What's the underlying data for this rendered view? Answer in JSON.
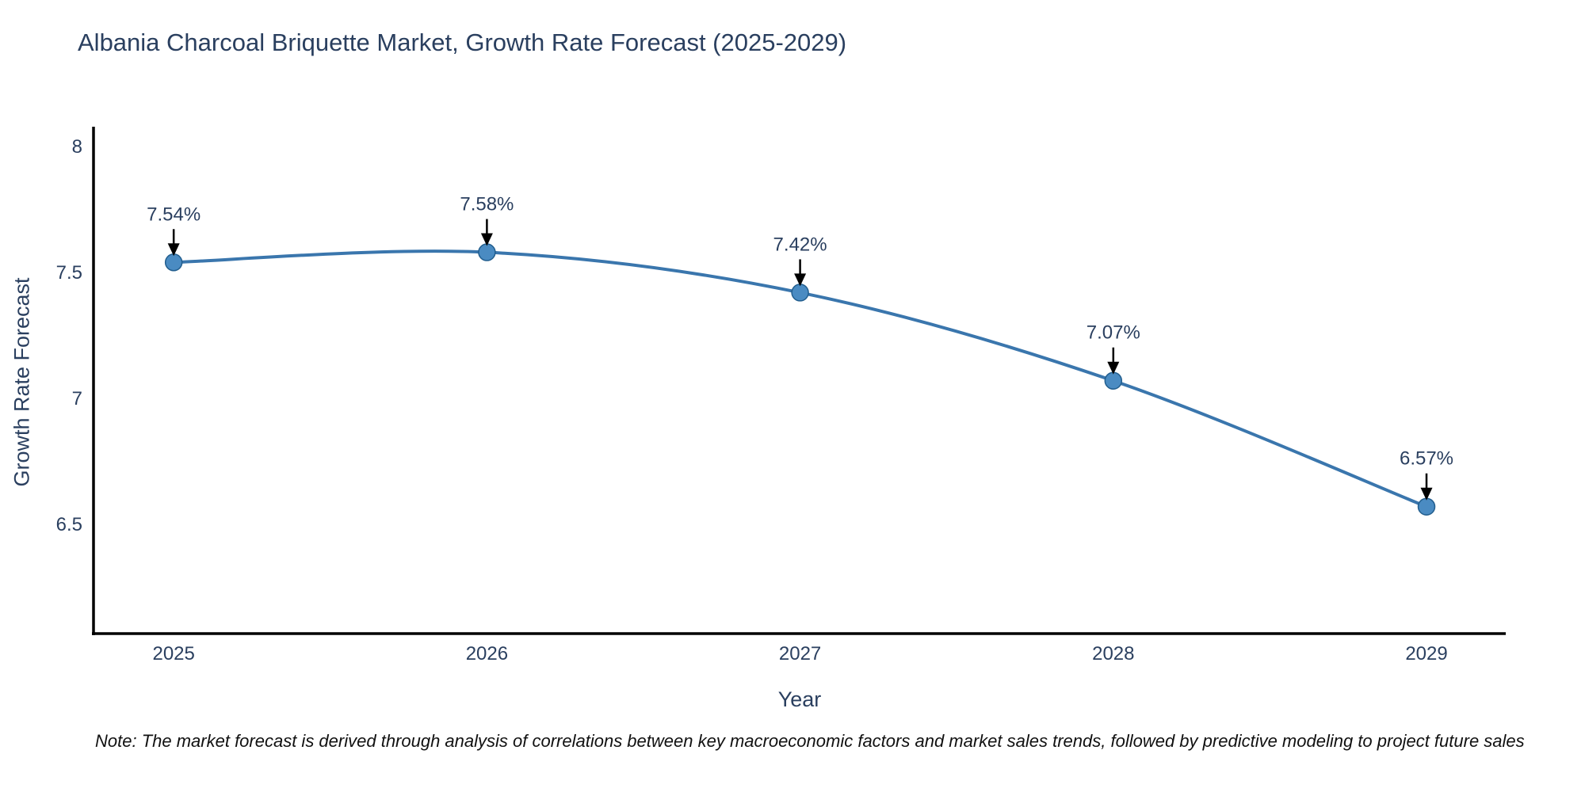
{
  "page": {
    "title": "Albania Charcoal Briquette Market, Growth Rate Forecast (2025-2029)",
    "note": "Note: The market forecast is derived through analysis of correlations between key macroeconomic factors and market sales trends, followed by predictive modeling to project future sales"
  },
  "chart_data": {
    "type": "line",
    "title": "Albania Charcoal Briquette Market, Growth Rate Forecast (2025-2029)",
    "xlabel": "Year",
    "ylabel": "Growth Rate Forecast",
    "x": [
      2025,
      2026,
      2027,
      2028,
      2029
    ],
    "values": [
      7.54,
      7.58,
      7.42,
      7.07,
      6.57
    ],
    "point_labels": [
      "7.54%",
      "7.58%",
      "7.42%",
      "7.07%",
      "6.57%"
    ],
    "yticks": [
      8,
      7.5,
      7,
      6.5
    ],
    "xticks": [
      2025,
      2026,
      2027,
      2028,
      2029
    ],
    "xlim": [
      2024.744,
      2029.253
    ],
    "ylim": [
      6.066,
      8.0786
    ],
    "grid": false,
    "legend": "none",
    "annotation_arrows": true,
    "colors": {
      "line": "#3a76ad",
      "marker_fill": "#4a8bc2",
      "marker_edge": "#225e8e",
      "axis_line": "#000000",
      "arrow": "#000000",
      "title_text": "#2a3f5f",
      "tick_text": "#2a3f5f",
      "note_text": "#111111",
      "background": "#ffffff"
    }
  }
}
